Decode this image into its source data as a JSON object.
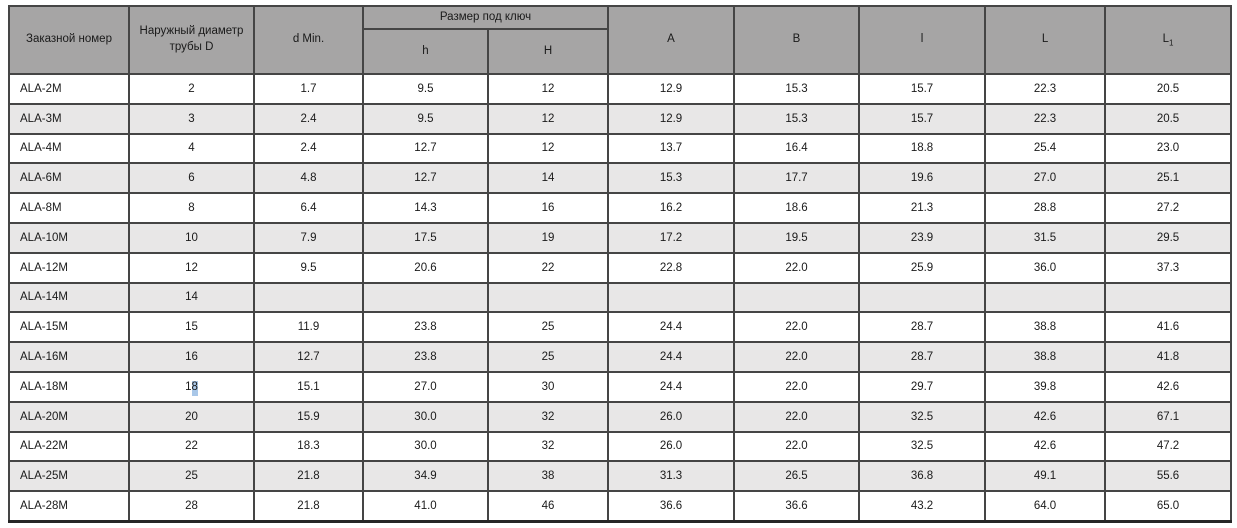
{
  "table": {
    "headers": {
      "order_number": "Заказной номер",
      "outer_diameter": "Наружный диаметр трубы D",
      "d_min": "d Min.",
      "wrench_size": "Размер под ключ",
      "h_small": "h",
      "h_big": "H",
      "a": "A",
      "b": "B",
      "l_small": "l",
      "l_big": "L",
      "l1_base": "L",
      "l1_sub": "1"
    },
    "rows": [
      [
        "ALA-2M",
        "2",
        "1.7",
        "9.5",
        "12",
        "12.9",
        "15.3",
        "15.7",
        "22.3",
        "20.5"
      ],
      [
        "ALA-3M",
        "3",
        "2.4",
        "9.5",
        "12",
        "12.9",
        "15.3",
        "15.7",
        "22.3",
        "20.5"
      ],
      [
        "ALA-4M",
        "4",
        "2.4",
        "12.7",
        "12",
        "13.7",
        "16.4",
        "18.8",
        "25.4",
        "23.0"
      ],
      [
        "ALA-6M",
        "6",
        "4.8",
        "12.7",
        "14",
        "15.3",
        "17.7",
        "19.6",
        "27.0",
        "25.1"
      ],
      [
        "ALA-8M",
        "8",
        "6.4",
        "14.3",
        "16",
        "16.2",
        "18.6",
        "21.3",
        "28.8",
        "27.2"
      ],
      [
        "ALA-10M",
        "10",
        "7.9",
        "17.5",
        "19",
        "17.2",
        "19.5",
        "23.9",
        "31.5",
        "29.5"
      ],
      [
        "ALA-12M",
        "12",
        "9.5",
        "20.6",
        "22",
        "22.8",
        "22.0",
        "25.9",
        "36.0",
        "37.3"
      ],
      [
        "ALA-14M",
        "14",
        "",
        "",
        "",
        "",
        "",
        "",
        "",
        ""
      ],
      [
        "ALA-15M",
        "15",
        "11.9",
        "23.8",
        "25",
        "24.4",
        "22.0",
        "28.7",
        "38.8",
        "41.6"
      ],
      [
        "ALA-16M",
        "16",
        "12.7",
        "23.8",
        "25",
        "24.4",
        "22.0",
        "28.7",
        "38.8",
        "41.8"
      ],
      [
        "ALA-18M",
        "18",
        "15.1",
        "27.0",
        "30",
        "24.4",
        "22.0",
        "29.7",
        "39.8",
        "42.6"
      ],
      [
        "ALA-20M",
        "20",
        "15.9",
        "30.0",
        "32",
        "26.0",
        "22.0",
        "32.5",
        "42.6",
        "67.1"
      ],
      [
        "ALA-22M",
        "22",
        "18.3",
        "30.0",
        "32",
        "26.0",
        "22.0",
        "32.5",
        "42.6",
        "47.2"
      ],
      [
        "ALA-25M",
        "25",
        "21.8",
        "34.9",
        "38",
        "31.3",
        "26.5",
        "36.8",
        "49.1",
        "55.6"
      ],
      [
        "ALA-28M",
        "28",
        "21.8",
        "41.0",
        "46",
        "36.6",
        "36.6",
        "43.2",
        "64.0",
        "65.0"
      ]
    ]
  },
  "selection": {
    "row_index": 10,
    "col_index": 1,
    "prefix": "1",
    "selected_text": "8"
  },
  "colors": {
    "header_bg": "#a6a5a5",
    "stripe_bg": "#e8e7e7",
    "border": "#454545",
    "selection_highlight": "#a9c7e8"
  }
}
